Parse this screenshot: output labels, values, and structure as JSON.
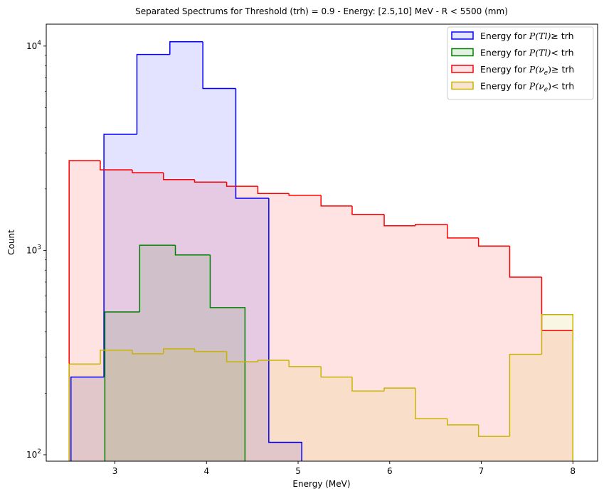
{
  "chart_data": {
    "type": "histogram",
    "title": "Separated Spectrums for Threshold (trh) = 0.9 - Energy: [2.5,10] MeV - R < 5500 (mm)",
    "xlabel": "Energy (MeV)",
    "ylabel": "Count",
    "yscale": "log",
    "xlim": [
      2.25,
      8.27
    ],
    "ylim": [
      93,
      12800
    ],
    "x_ticks": [
      "3",
      "4",
      "5",
      "6",
      "7",
      "8"
    ],
    "y_ticks": [
      {
        "base": "10",
        "exp": "2"
      },
      {
        "base": "10",
        "exp": "3"
      },
      {
        "base": "10",
        "exp": "4"
      }
    ],
    "legend": {
      "position": "upper-right",
      "entries": [
        {
          "prefix": "Energy for ",
          "var": "P(Tl)",
          "sub": "",
          "op": "≥",
          "suffix": " trh"
        },
        {
          "prefix": "Energy for ",
          "var": "P(Tl)",
          "sub": "",
          "op": "<",
          "suffix": " trh"
        },
        {
          "prefix": "Energy for ",
          "var": "P(ν",
          "sub": "e",
          "op": "≥",
          "suffix": " trh"
        },
        {
          "prefix": "Energy for ",
          "var": "P(ν",
          "sub": "e",
          "op": "<",
          "suffix": " trh"
        }
      ]
    },
    "series": [
      {
        "color": "#0000ff",
        "fill": "#e4e4ff",
        "edges": [
          2.52,
          2.88,
          3.24,
          3.6,
          3.96,
          4.32,
          4.68,
          5.04
        ],
        "values": [
          240,
          3700,
          9100,
          10500,
          6200,
          1800,
          115
        ]
      },
      {
        "color": "#008000",
        "fill": "#e4f2e4",
        "edges": [
          2.89,
          3.27,
          3.66,
          4.04,
          4.42
        ],
        "values": [
          500,
          1060,
          950,
          525
        ]
      },
      {
        "color": "#ff0000",
        "fill": "#ffe4e8",
        "edges": [
          2.5,
          2.84,
          3.19,
          3.53,
          3.87,
          4.22,
          4.56,
          4.9,
          5.25,
          5.59,
          5.94,
          6.28,
          6.63,
          6.97,
          7.31,
          7.66,
          8.0
        ],
        "values": [
          2750,
          2480,
          2400,
          2220,
          2160,
          2060,
          1900,
          1860,
          1650,
          1500,
          1320,
          1340,
          1150,
          1050,
          740,
          405
        ]
      },
      {
        "color": "#c8b400",
        "fill": "#f7e4d2",
        "edges": [
          2.5,
          2.84,
          3.19,
          3.53,
          3.87,
          4.22,
          4.56,
          4.9,
          5.25,
          5.59,
          5.94,
          6.28,
          6.63,
          6.97,
          7.31,
          7.66,
          8.0
        ],
        "values": [
          278,
          325,
          312,
          330,
          320,
          285,
          290,
          270,
          240,
          205,
          212,
          150,
          140,
          123,
          310,
          485
        ]
      }
    ]
  }
}
